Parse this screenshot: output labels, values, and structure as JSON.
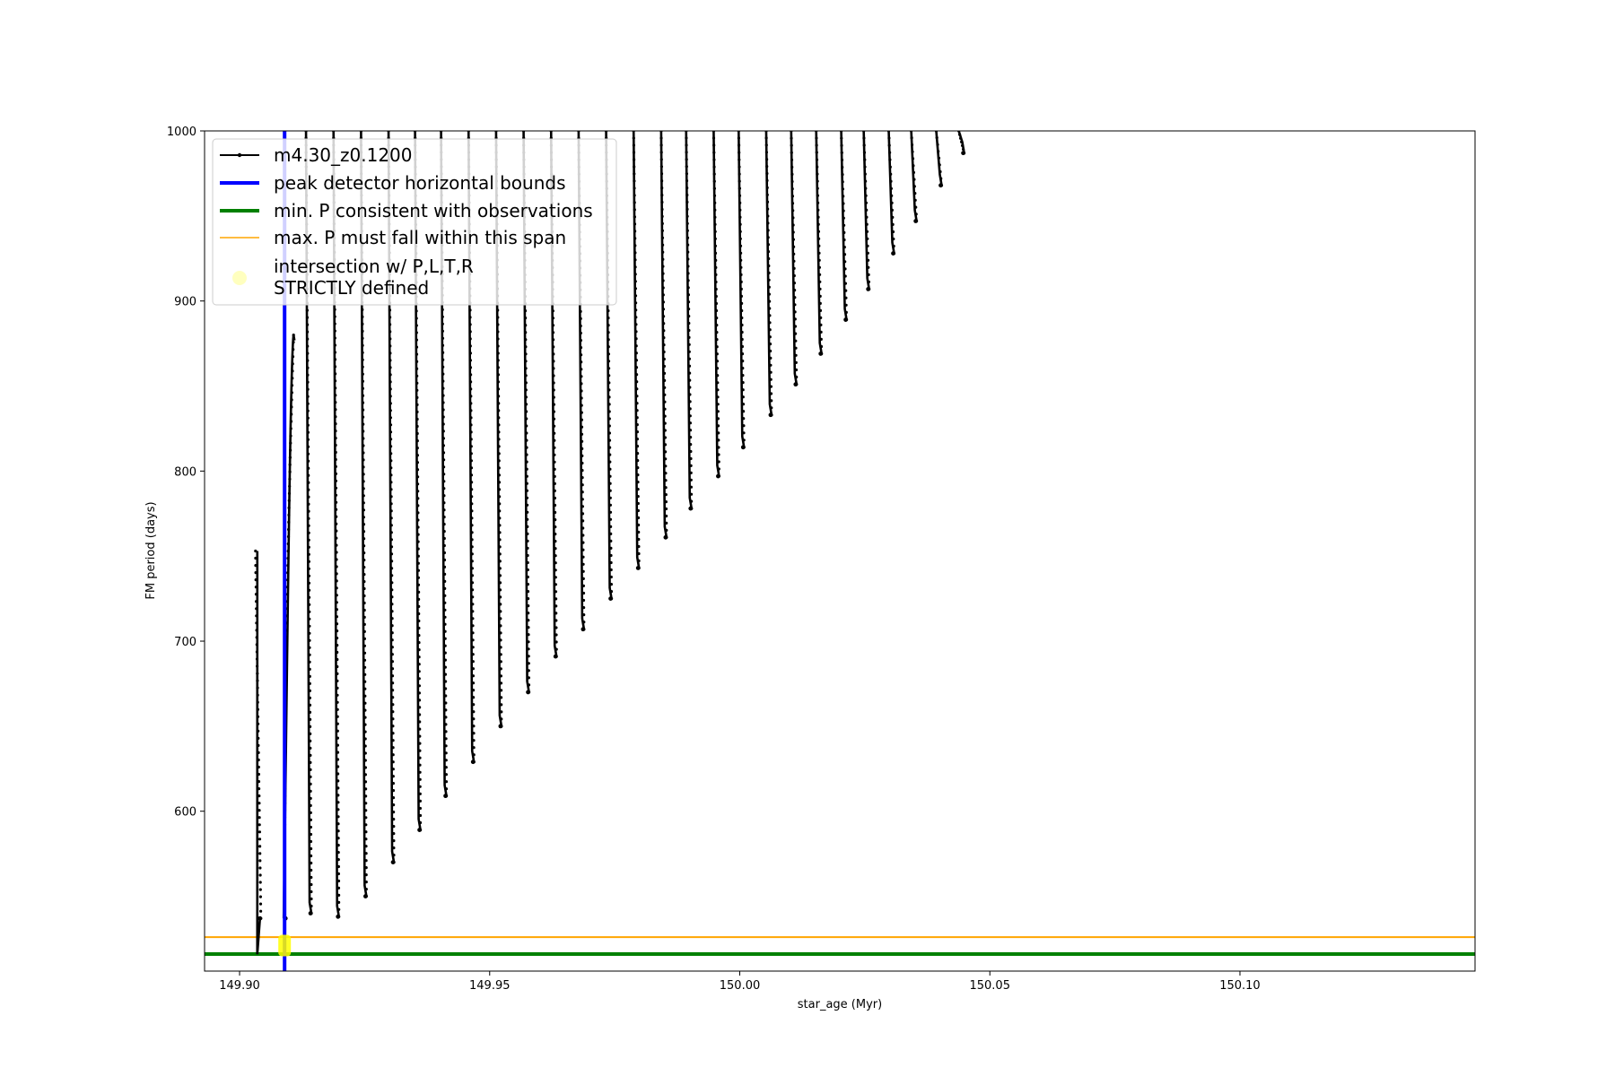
{
  "chart_data": {
    "type": "line",
    "title": "",
    "xlabel": "star_age (Myr)",
    "ylabel": "FM period (days)",
    "xlim": [
      149.893,
      150.147
    ],
    "ylim": [
      506,
      1000
    ],
    "x_ticks": [
      149.9,
      149.95,
      150.0,
      150.05,
      150.1
    ],
    "x_tick_labels": [
      "149.90",
      "149.95",
      "150.00",
      "150.05",
      "150.10"
    ],
    "y_ticks": [
      600,
      700,
      800,
      900,
      1000
    ],
    "y_tick_labels": [
      "600",
      "700",
      "800",
      "900",
      "1000"
    ],
    "grid": false,
    "legend_position": "top-left",
    "series": [
      {
        "name": "m4.30_z0.1200",
        "style": "line-with-markers",
        "color": "#000000",
        "cycles": [
          {
            "x": 149.9039,
            "p_max": 753,
            "p_min": 537
          },
          {
            "x": 149.909,
            "p_max": 880,
            "p_min": 537,
            "curved": true
          },
          {
            "x": 149.914,
            "p_max": 1000,
            "p_min": 540
          },
          {
            "x": 149.9195,
            "p_max": 1000,
            "p_min": 538
          },
          {
            "x": 149.925,
            "p_max": 1000,
            "p_min": 550
          },
          {
            "x": 149.9305,
            "p_max": 1000,
            "p_min": 570
          },
          {
            "x": 149.9358,
            "p_max": 1000,
            "p_min": 589
          },
          {
            "x": 149.941,
            "p_max": 1000,
            "p_min": 609
          },
          {
            "x": 149.9465,
            "p_max": 1000,
            "p_min": 629
          },
          {
            "x": 149.952,
            "p_max": 1000,
            "p_min": 650
          },
          {
            "x": 149.9575,
            "p_max": 1000,
            "p_min": 670
          },
          {
            "x": 149.963,
            "p_max": 1000,
            "p_min": 691
          },
          {
            "x": 149.9685,
            "p_max": 1000,
            "p_min": 707
          },
          {
            "x": 149.974,
            "p_max": 1000,
            "p_min": 725
          },
          {
            "x": 149.9795,
            "p_max": 1000,
            "p_min": 743
          },
          {
            "x": 149.985,
            "p_max": 1000,
            "p_min": 761
          },
          {
            "x": 149.99,
            "p_max": 1000,
            "p_min": 778
          },
          {
            "x": 149.9955,
            "p_max": 1000,
            "p_min": 797
          },
          {
            "x": 150.0005,
            "p_max": 1000,
            "p_min": 814
          },
          {
            "x": 150.006,
            "p_max": 1000,
            "p_min": 833
          },
          {
            "x": 150.011,
            "p_max": 1000,
            "p_min": 851
          },
          {
            "x": 150.016,
            "p_max": 1000,
            "p_min": 869
          },
          {
            "x": 150.021,
            "p_max": 1000,
            "p_min": 889
          },
          {
            "x": 150.0255,
            "p_max": 1000,
            "p_min": 907
          },
          {
            "x": 150.0305,
            "p_max": 1000,
            "p_min": 928
          },
          {
            "x": 150.035,
            "p_max": 1000,
            "p_min": 947
          },
          {
            "x": 150.04,
            "p_max": 1000,
            "p_min": 968
          },
          {
            "x": 150.0445,
            "p_max": 1000,
            "p_min": 987
          }
        ]
      },
      {
        "name": "peak detector horizontal bounds",
        "style": "vertical-line",
        "color": "#0000ff",
        "x": 149.909
      },
      {
        "name": "min. P consistent with observations",
        "style": "horizontal-line",
        "color": "#008000",
        "y": 516
      },
      {
        "name": "max. P must fall within this span",
        "style": "horizontal-line",
        "color": "#ffa500",
        "y": 526
      },
      {
        "name": "intersection w/ P,L,T,R\nSTRICTLY defined",
        "style": "marker",
        "color": "#ffff00",
        "points": [
          {
            "x": 149.909,
            "y": 521
          }
        ]
      }
    ]
  }
}
